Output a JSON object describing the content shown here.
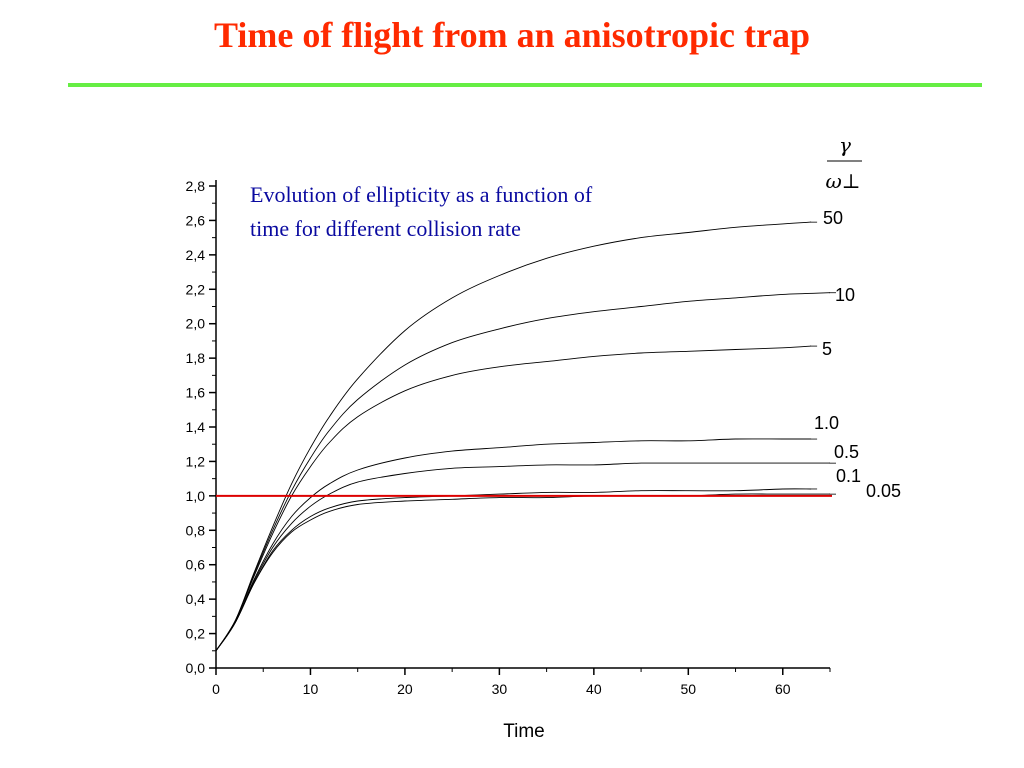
{
  "slide": {
    "title": "Time of flight from an anisotropic trap"
  },
  "chart_data": {
    "type": "line",
    "title": "",
    "xlabel": "Time",
    "ylabel": "",
    "xlim": [
      0,
      65
    ],
    "ylim": [
      0,
      2.8
    ],
    "xticks": [
      0,
      10,
      20,
      30,
      40,
      50,
      60
    ],
    "yticks": [
      0,
      0.2,
      0.4,
      0.6,
      0.8,
      1.0,
      1.2,
      1.4,
      1.6,
      1.8,
      2.0,
      2.2,
      2.4,
      2.6,
      2.8
    ],
    "xtick_labels": [
      "0",
      "10",
      "20",
      "30",
      "40",
      "50",
      "60"
    ],
    "ytick_labels": [
      "0,0",
      "0,2",
      "0,4",
      "0,6",
      "0,8",
      "1,0",
      "1,2",
      "1,4",
      "1,6",
      "1,8",
      "2,0",
      "2,2",
      "2,4",
      "2,6",
      "2,8"
    ],
    "grid": false,
    "legend_title": {
      "numerator": "γ",
      "denominator": "ω⊥"
    },
    "annotation": [
      "Evolution of ellipticity as a function of",
      "time for different collision rate"
    ],
    "reference_line": {
      "y": 1.0,
      "color": "#dd0000"
    },
    "series": [
      {
        "name": "50",
        "x": [
          0,
          2,
          4,
          6,
          8,
          10,
          12,
          15,
          20,
          25,
          30,
          35,
          40,
          45,
          50,
          55,
          60,
          63
        ],
        "y": [
          0.1,
          0.27,
          0.55,
          0.82,
          1.07,
          1.28,
          1.46,
          1.68,
          1.96,
          2.15,
          2.28,
          2.38,
          2.45,
          2.5,
          2.53,
          2.56,
          2.58,
          2.59
        ]
      },
      {
        "name": "10",
        "x": [
          0,
          2,
          4,
          6,
          8,
          10,
          12,
          15,
          20,
          25,
          30,
          35,
          40,
          45,
          50,
          55,
          60,
          65
        ],
        "y": [
          0.1,
          0.27,
          0.54,
          0.8,
          1.03,
          1.22,
          1.38,
          1.56,
          1.76,
          1.89,
          1.97,
          2.03,
          2.07,
          2.1,
          2.13,
          2.15,
          2.17,
          2.18
        ]
      },
      {
        "name": "5",
        "x": [
          0,
          2,
          4,
          6,
          8,
          10,
          12,
          15,
          20,
          25,
          30,
          35,
          40,
          45,
          50,
          55,
          60,
          63
        ],
        "y": [
          0.1,
          0.27,
          0.53,
          0.78,
          1.0,
          1.17,
          1.31,
          1.46,
          1.61,
          1.7,
          1.75,
          1.78,
          1.81,
          1.83,
          1.84,
          1.85,
          1.86,
          1.87
        ]
      },
      {
        "name": "1.0",
        "x": [
          0,
          2,
          4,
          6,
          8,
          10,
          12,
          15,
          20,
          25,
          30,
          35,
          40,
          45,
          50,
          55,
          60,
          63
        ],
        "y": [
          0.1,
          0.26,
          0.51,
          0.72,
          0.88,
          0.99,
          1.07,
          1.15,
          1.22,
          1.26,
          1.28,
          1.3,
          1.31,
          1.32,
          1.32,
          1.33,
          1.33,
          1.33
        ]
      },
      {
        "name": "0.5",
        "x": [
          0,
          2,
          4,
          6,
          8,
          10,
          12,
          15,
          20,
          25,
          30,
          35,
          40,
          45,
          50,
          55,
          60,
          65
        ],
        "y": [
          0.1,
          0.26,
          0.5,
          0.7,
          0.84,
          0.94,
          1.01,
          1.08,
          1.13,
          1.16,
          1.17,
          1.18,
          1.18,
          1.19,
          1.19,
          1.19,
          1.19,
          1.19
        ]
      },
      {
        "name": "0.1",
        "x": [
          0,
          2,
          4,
          6,
          8,
          10,
          12,
          15,
          20,
          25,
          30,
          35,
          40,
          45,
          50,
          55,
          60,
          63
        ],
        "y": [
          0.1,
          0.26,
          0.49,
          0.68,
          0.8,
          0.88,
          0.93,
          0.97,
          0.99,
          1.0,
          1.01,
          1.02,
          1.02,
          1.03,
          1.03,
          1.03,
          1.04,
          1.04
        ]
      },
      {
        "name": "0.05",
        "x": [
          0,
          2,
          4,
          6,
          8,
          10,
          12,
          15,
          20,
          25,
          30,
          35,
          40,
          45,
          50,
          55,
          60,
          65
        ],
        "y": [
          0.1,
          0.26,
          0.49,
          0.67,
          0.79,
          0.86,
          0.91,
          0.95,
          0.97,
          0.98,
          0.99,
          0.99,
          1.0,
          1.0,
          1.0,
          1.01,
          1.01,
          1.01
        ]
      }
    ]
  }
}
